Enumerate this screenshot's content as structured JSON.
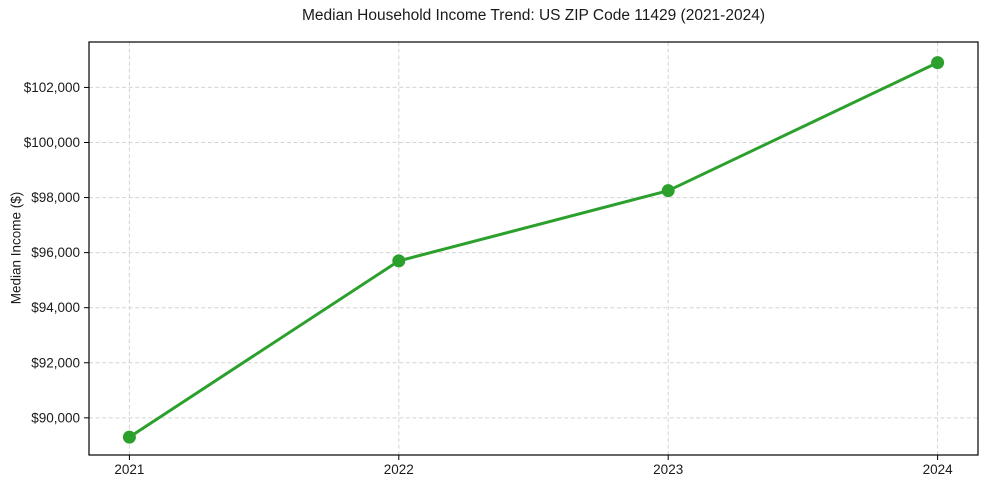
{
  "figure": {
    "background": "#ffffff"
  },
  "chart_data": {
    "type": "line",
    "title": "Median Household Income Trend: US ZIP Code 11429 (2021-2024)",
    "xlabel": "",
    "ylabel": "Median Income ($)",
    "x": [
      2021,
      2022,
      2023,
      2024
    ],
    "values": [
      89300,
      95700,
      98250,
      102900
    ],
    "xticks": [
      2021,
      2022,
      2023,
      2024
    ],
    "xtick_labels": [
      "2021",
      "2022",
      "2023",
      "2024"
    ],
    "yticks": [
      90000,
      92000,
      94000,
      96000,
      98000,
      100000,
      102000
    ],
    "ytick_labels": [
      "$90,000",
      "$92,000",
      "$94,000",
      "$96,000",
      "$98,000",
      "$100,000",
      "$102,000"
    ],
    "xlim": [
      2020.85,
      2024.15
    ],
    "ylim": [
      88650,
      103650
    ],
    "grid": true,
    "legend": "none",
    "series_color": "#2ca02c",
    "marker": "circle",
    "marker_size": 6.5,
    "line_width": 3,
    "grid_color": "#d4d4d4",
    "grid_dash": "4 2.6",
    "frame_color": "#000000",
    "text_color": "#1a1a1a",
    "tick_font_size": 13.5
  }
}
